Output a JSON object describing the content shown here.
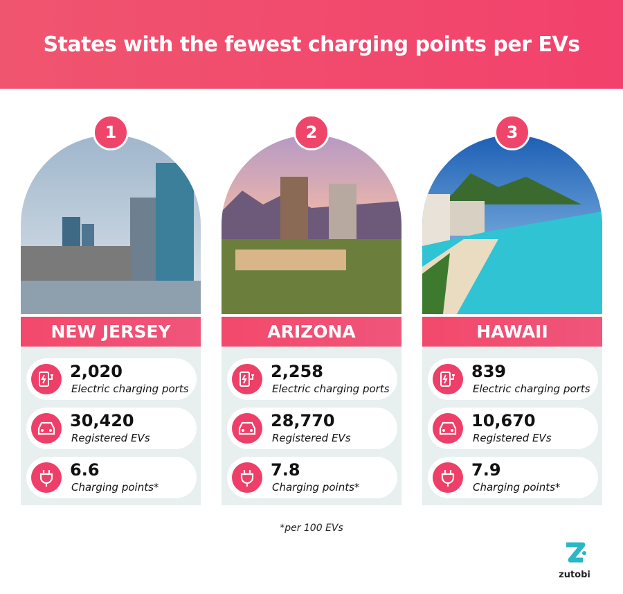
{
  "header": {
    "title": "States with the fewest charging points per EVs"
  },
  "cards": [
    {
      "rank": "1",
      "name": "NEW JERSEY",
      "stats": [
        {
          "value": "2,020",
          "label": "Electric charging ports"
        },
        {
          "value": "30,420",
          "label": "Registered EVs"
        },
        {
          "value": "6.6",
          "label": "Charging points*"
        }
      ]
    },
    {
      "rank": "2",
      "name": "ARIZONA",
      "stats": [
        {
          "value": "2,258",
          "label": "Electric charging ports"
        },
        {
          "value": "28,770",
          "label": "Registered EVs"
        },
        {
          "value": "7.8",
          "label": "Charging points*"
        }
      ]
    },
    {
      "rank": "3",
      "name": "HAWAII",
      "stats": [
        {
          "value": "839",
          "label": "Electric charging ports"
        },
        {
          "value": "10,670",
          "label": "Registered EVs"
        },
        {
          "value": "7.9",
          "label": "Charging points*"
        }
      ]
    }
  ],
  "footnote": "*per 100 EVs",
  "logo": "zutobi"
}
